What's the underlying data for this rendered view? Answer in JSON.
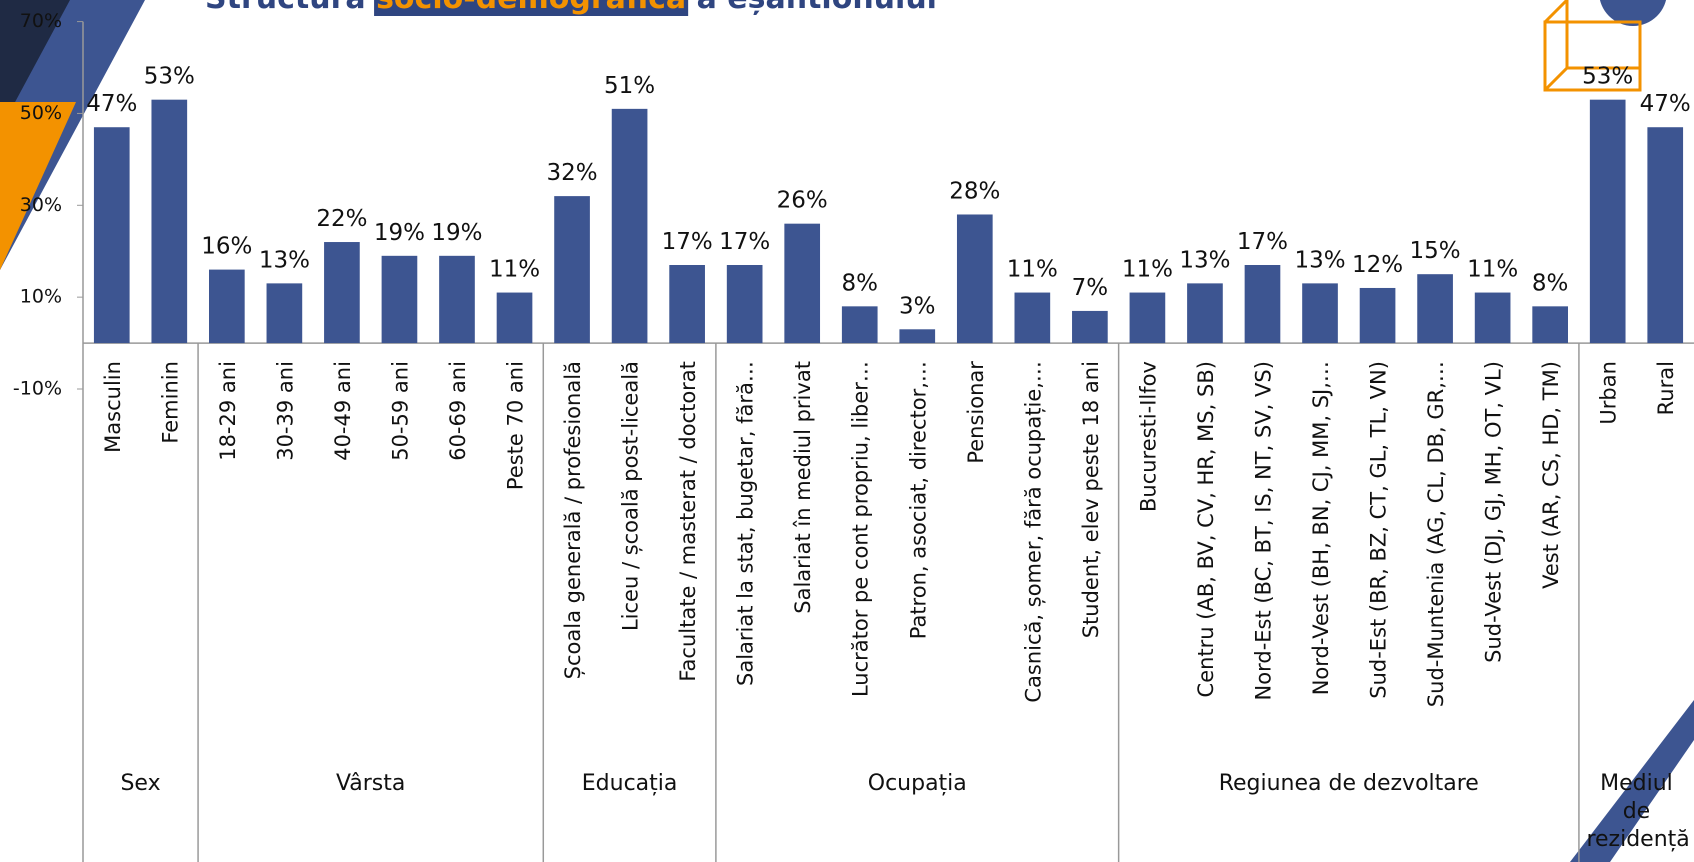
{
  "chart_data": {
    "type": "bar",
    "title": [
      "Structura ",
      "socio-demografică",
      " a eșantionului"
    ],
    "color": "#3d5591",
    "ylim": [
      -10,
      70
    ],
    "yticks": [
      {
        "value": -10,
        "label": "-10%"
      },
      {
        "value": 10,
        "label": "10%"
      },
      {
        "value": 30,
        "label": "30%"
      },
      {
        "value": 50,
        "label": "50%"
      },
      {
        "value": 70,
        "label": "70%"
      }
    ],
    "groups": [
      {
        "name": "Sex",
        "categories": [
          "Masculin",
          "Feminin"
        ],
        "values": [
          47,
          53
        ],
        "value_labels": [
          "47%",
          "53%"
        ]
      },
      {
        "name": "Vârsta",
        "categories": [
          "18-29 ani",
          "30-39 ani",
          "40-49 ani",
          "50-59 ani",
          "60-69 ani",
          "Peste 70 ani"
        ],
        "values": [
          16,
          13,
          22,
          19,
          19,
          11
        ],
        "value_labels": [
          "16%",
          "13%",
          "22%",
          "19%",
          "19%",
          "11%"
        ]
      },
      {
        "name": "Educația",
        "categories": [
          "Școala generală / profesională",
          "Liceu / școală post-liceală",
          "Facultate / masterat / doctorat"
        ],
        "values": [
          32,
          51,
          17
        ],
        "value_labels": [
          "32%",
          "51%",
          "17%"
        ]
      },
      {
        "name": "Ocupația",
        "categories": [
          "Salariat la stat, bugetar, fără…",
          "Salariat în mediul privat",
          "Lucrător pe cont propriu, liber…",
          "Patron, asociat, director,…",
          "Pensionar",
          "Casnică, șomer, fără ocupație,…",
          "Student, elev peste 18 ani"
        ],
        "values": [
          17,
          26,
          8,
          3,
          28,
          11,
          7
        ],
        "value_labels": [
          "17%",
          "26%",
          "8%",
          "3%",
          "28%",
          "11%",
          "7%"
        ]
      },
      {
        "name": "Regiunea de dezvoltare",
        "categories": [
          "Bucuresti-Ilfov",
          "Centru (AB, BV, CV, HR, MS, SB)",
          "Nord-Est (BC, BT, IS, NT, SV, VS)",
          "Nord-Vest (BH, BN, CJ, MM, SJ,…",
          "Sud-Est (BR, BZ, CT, GL, TL, VN)",
          "Sud-Muntenia (AG, CL, DB, GR,…",
          "Sud-Vest (DJ, GJ, MH, OT, VL)",
          "Vest (AR, CS, HD, TM)"
        ],
        "values": [
          11,
          13,
          17,
          13,
          12,
          15,
          11,
          8
        ],
        "value_labels": [
          "11%",
          "13%",
          "17%",
          "13%",
          "12%",
          "15%",
          "11%",
          "8%"
        ]
      },
      {
        "name": "Mediul de rezidență",
        "categories": [
          "Urban",
          "Rural"
        ],
        "values": [
          53,
          47
        ],
        "value_labels": [
          "53%",
          "47%"
        ]
      }
    ]
  }
}
